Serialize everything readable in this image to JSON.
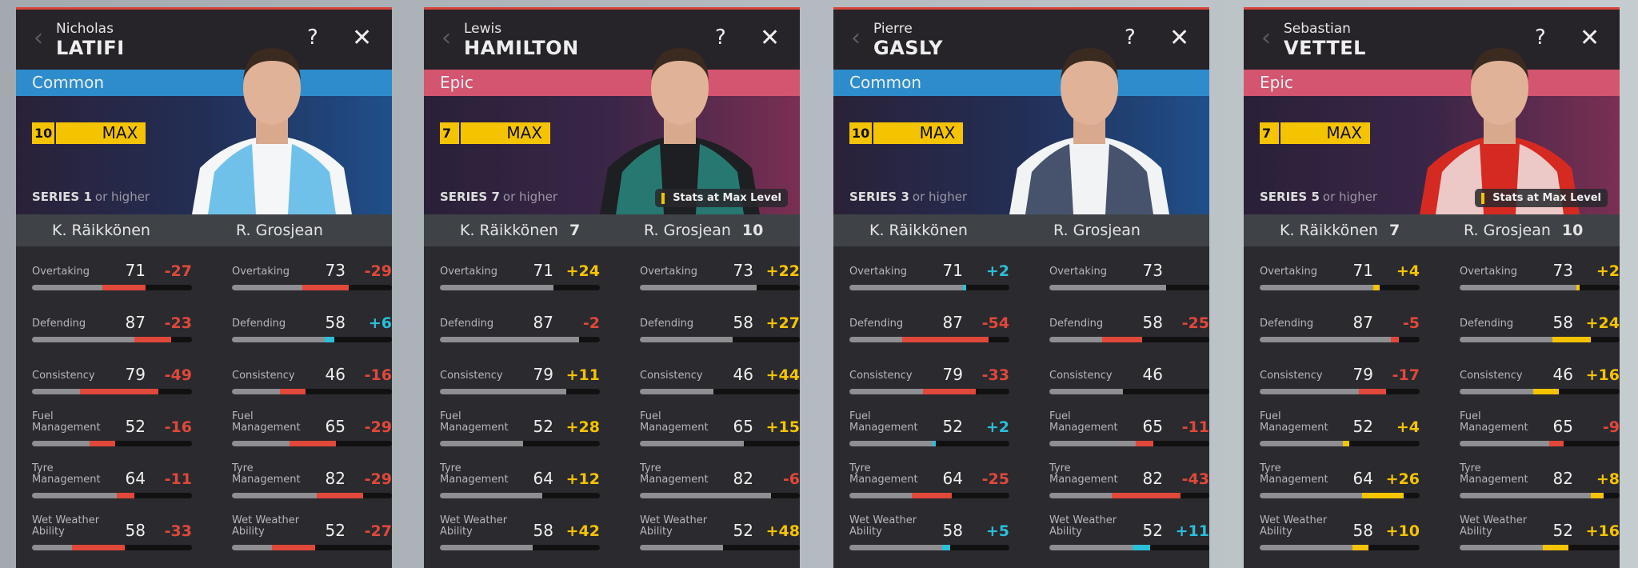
{
  "colors": {
    "common": "#2e8ccc",
    "epic": "#d4556f",
    "negative": "#e0483a",
    "positive_common": "#2bbfd8",
    "positive_epic": "#f5c400",
    "bar_base": "#8f8e93"
  },
  "stat_labels": [
    "Overtaking",
    "Defending",
    "Consistency",
    "Fuel Management",
    "Tyre Management",
    "Wet Weather Ability"
  ],
  "cards": [
    {
      "first_name": "Nicholas",
      "last_name": "LATIFI",
      "rarity": "Common",
      "level": "10",
      "max_label": "MAX",
      "series": "SERIES 1",
      "series_suffix": "or higher",
      "stats_max_label": "",
      "delta_bars": true,
      "compare": [
        {
          "name": "K. Räikkönen",
          "level": ""
        },
        {
          "name": "R. Grosjean",
          "level": ""
        }
      ],
      "cols": [
        {
          "values": [
            71,
            87,
            79,
            52,
            64,
            58
          ],
          "deltas": [
            "-27",
            "-23",
            "-49",
            "-16",
            "-11",
            "-33"
          ]
        },
        {
          "values": [
            73,
            58,
            46,
            65,
            82,
            52
          ],
          "deltas": [
            "-29",
            "+6",
            "-16",
            "-29",
            "-29",
            "-27"
          ]
        }
      ]
    },
    {
      "first_name": "Lewis",
      "last_name": "HAMILTON",
      "rarity": "Epic",
      "level": "7",
      "max_label": "MAX",
      "series": "SERIES 7",
      "series_suffix": "or higher",
      "stats_max_label": "Stats at Max Level",
      "delta_bars": false,
      "compare": [
        {
          "name": "K. Räikkönen",
          "level": "7"
        },
        {
          "name": "R. Grosjean",
          "level": "10"
        }
      ],
      "cols": [
        {
          "values": [
            71,
            87,
            79,
            52,
            64,
            58
          ],
          "deltas": [
            "+24",
            "-2",
            "+11",
            "+28",
            "+12",
            "+42"
          ]
        },
        {
          "values": [
            73,
            58,
            46,
            65,
            82,
            52
          ],
          "deltas": [
            "+22",
            "+27",
            "+44",
            "+15",
            "-6",
            "+48"
          ]
        }
      ]
    },
    {
      "first_name": "Pierre",
      "last_name": "GASLY",
      "rarity": "Common",
      "level": "10",
      "max_label": "MAX",
      "series": "SERIES 3",
      "series_suffix": "or higher",
      "stats_max_label": "",
      "delta_bars": true,
      "compare": [
        {
          "name": "K. Räikkönen",
          "level": ""
        },
        {
          "name": "R. Grosjean",
          "level": ""
        }
      ],
      "cols": [
        {
          "values": [
            71,
            87,
            79,
            52,
            64,
            58
          ],
          "deltas": [
            "+2",
            "-54",
            "-33",
            "+2",
            "-25",
            "+5"
          ]
        },
        {
          "values": [
            73,
            58,
            46,
            65,
            82,
            52
          ],
          "deltas": [
            "",
            "-25",
            "",
            "-11",
            "-43",
            "+11"
          ]
        }
      ]
    },
    {
      "first_name": "Sebastian",
      "last_name": "VETTEL",
      "rarity": "Epic",
      "level": "7",
      "max_label": "MAX",
      "series": "SERIES 5",
      "series_suffix": "or higher",
      "stats_max_label": "Stats at Max Level",
      "delta_bars": true,
      "compare": [
        {
          "name": "K. Räikkönen",
          "level": "7"
        },
        {
          "name": "R. Grosjean",
          "level": "10"
        }
      ],
      "cols": [
        {
          "values": [
            71,
            87,
            79,
            52,
            64,
            58
          ],
          "deltas": [
            "+4",
            "-5",
            "-17",
            "+4",
            "+26",
            "+10"
          ]
        },
        {
          "values": [
            73,
            58,
            46,
            65,
            82,
            52
          ],
          "deltas": [
            "+2",
            "+24",
            "+16",
            "-9",
            "+8",
            "+16"
          ]
        }
      ]
    }
  ]
}
